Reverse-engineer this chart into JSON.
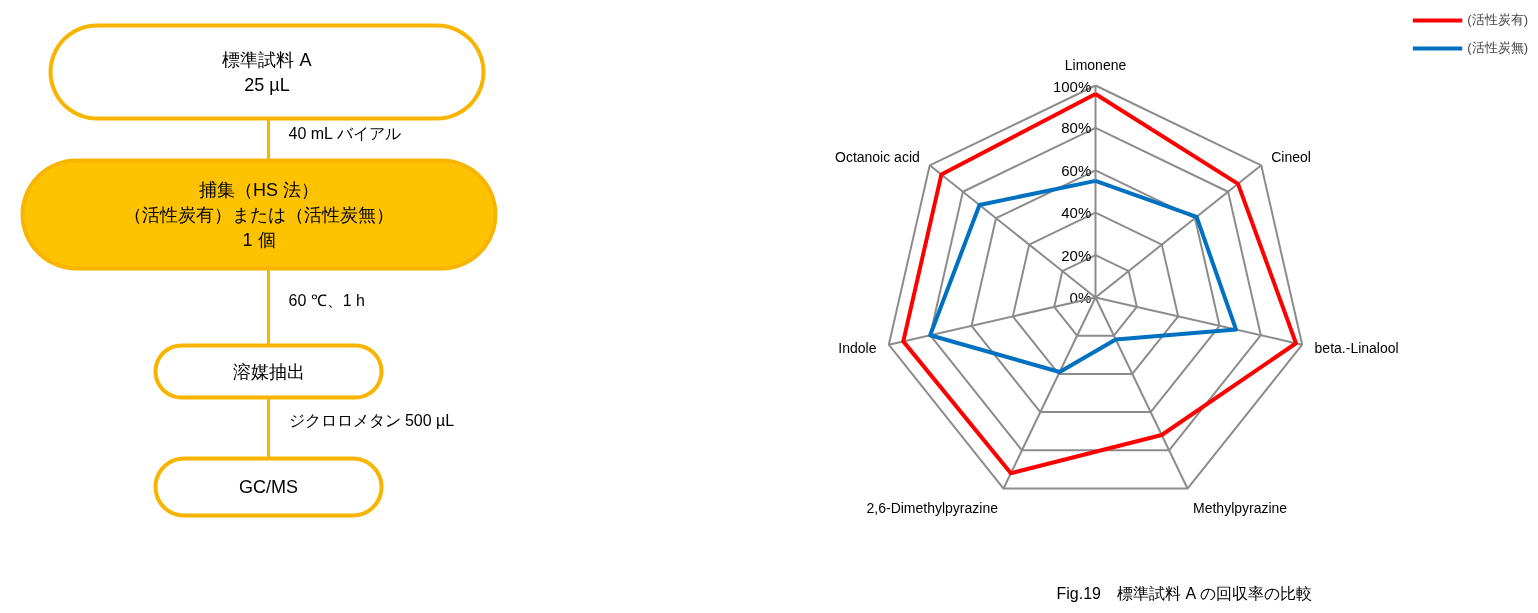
{
  "chart_data": [
    {
      "type": "other",
      "annotations": [
        "標準試料 A",
        "25 µL",
        "40 mL バイアル",
        "捕集（HS 法）",
        "（活性炭有）または（活性炭無）",
        "1 個",
        "60 ℃、1 h",
        "溶媒抽出",
        "ジクロロメタン 500 µL",
        "GC/MS"
      ]
    },
    {
      "type": "radar",
      "categories": [
        "Limonene",
        "Cineol",
        "beta.-Linalool",
        "Methylpyrazine",
        "2,6-Dimethylpyrazine",
        "Indole",
        "Octanoic acid"
      ],
      "series": [
        {
          "name": "(活性炭有)",
          "color": "#ff0000",
          "values": [
            96,
            86,
            97,
            72,
            92,
            93,
            93
          ]
        },
        {
          "name": "(活性炭無)",
          "color": "#0070c0",
          "values": [
            55,
            61,
            68,
            22,
            39,
            80,
            70
          ]
        }
      ],
      "ylim": [
        0,
        100
      ],
      "yticks": [
        {
          "value": 0,
          "label": "0%"
        },
        {
          "value": 20,
          "label": "20%"
        },
        {
          "value": 40,
          "label": "40%"
        },
        {
          "value": 60,
          "label": "60%"
        },
        {
          "value": 80,
          "label": "80%"
        },
        {
          "value": 100,
          "label": "100%"
        }
      ],
      "legend": "top right",
      "line_style": "solid",
      "marker": "none",
      "annotations": [
        "Fig.19　標準試料 A の回収率の比較"
      ]
    }
  ]
}
